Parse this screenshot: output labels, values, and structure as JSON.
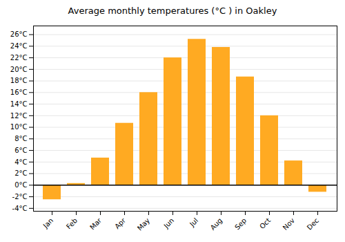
{
  "chart_data": {
    "type": "bar",
    "title": "Average monthly temperatures (°C ) in Oakley",
    "categories": [
      "Jan",
      "Feb",
      "Mar",
      "Apr",
      "May",
      "Jun",
      "Jul",
      "Aug",
      "Sep",
      "Oct",
      "Nov",
      "Dec"
    ],
    "values": [
      -2.5,
      0.3,
      4.7,
      10.7,
      16.0,
      22.0,
      25.2,
      23.8,
      18.7,
      12.0,
      4.2,
      -1.2
    ],
    "color": "#FFAA22",
    "ylim": [
      -4.5,
      27.5
    ],
    "yticks": [
      {
        "value": -4,
        "label": "-4°C"
      },
      {
        "value": -2,
        "label": "-2°C"
      },
      {
        "value": 0,
        "label": "0°C"
      },
      {
        "value": 2,
        "label": "2°C"
      },
      {
        "value": 4,
        "label": "4°C"
      },
      {
        "value": 6,
        "label": "6°C"
      },
      {
        "value": 8,
        "label": "8°C"
      },
      {
        "value": 10,
        "label": "10°C"
      },
      {
        "value": 12,
        "label": "12°C"
      },
      {
        "value": 14,
        "label": "14°C"
      },
      {
        "value": 16,
        "label": "16°C"
      },
      {
        "value": 18,
        "label": "18°C"
      },
      {
        "value": 20,
        "label": "20°C"
      },
      {
        "value": 22,
        "label": "22°C"
      },
      {
        "value": 24,
        "label": "24°C"
      },
      {
        "value": 26,
        "label": "26°C"
      }
    ],
    "grid": true
  }
}
